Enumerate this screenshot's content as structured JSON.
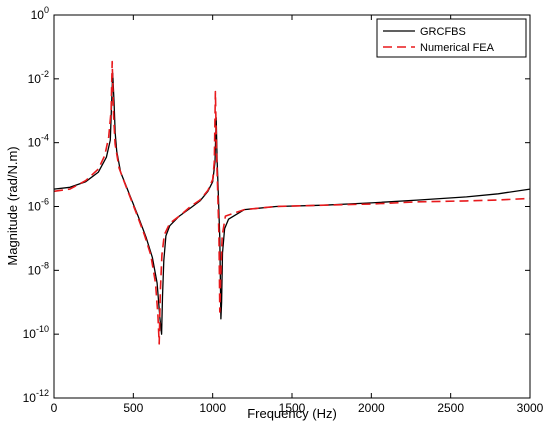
{
  "chart_data": {
    "type": "line",
    "title": "",
    "xlabel": "Frequency (Hz)",
    "ylabel": "Magnitude (rad/N.m)",
    "xlim": [
      0,
      3000
    ],
    "ylim_log10": [
      -12,
      0
    ],
    "yscale": "log",
    "grid": false,
    "legend_position": "top-right",
    "x_ticks": [
      "0",
      "500",
      "1000",
      "1500",
      "2000",
      "2500",
      "3000"
    ],
    "y_ticks": [
      {
        "base": "10",
        "exp": "0"
      },
      {
        "base": "10",
        "exp": "-2"
      },
      {
        "base": "10",
        "exp": "-4"
      },
      {
        "base": "10",
        "exp": "-6"
      },
      {
        "base": "10",
        "exp": "-8"
      },
      {
        "base": "10",
        "exp": "-10"
      },
      {
        "base": "10",
        "exp": "-12"
      }
    ],
    "series": [
      {
        "name": "GRCFBS",
        "color": "#000000",
        "dash": "solid",
        "x": [
          0,
          100,
          200,
          280,
          330,
          355,
          370,
          378,
          386,
          395,
          420,
          470,
          530,
          580,
          620,
          650,
          668,
          678,
          684,
          692,
          705,
          730,
          790,
          860,
          920,
          970,
          1000,
          1015,
          1022,
          1028,
          1034,
          1045,
          1052,
          1056,
          1062,
          1075,
          1100,
          1200,
          1400,
          1700,
          2000,
          2300,
          2600,
          2800,
          3000
        ],
        "y": [
          3.5e-06,
          4e-06,
          6e-06,
          1.2e-05,
          3.5e-05,
          0.00012,
          0.015,
          0.002,
          0.0002,
          5.5e-05,
          1.2e-05,
          2.8e-06,
          5e-07,
          1.1e-07,
          2.5e-08,
          4e-09,
          3e-10,
          1e-10,
          1.5e-09,
          2e-08,
          1.2e-07,
          2.5e-07,
          5e-07,
          9e-07,
          1.5e-06,
          3e-06,
          6e-06,
          2.5e-05,
          0.0006,
          3e-05,
          4e-06,
          1e-07,
          3e-10,
          1e-09,
          3.5e-08,
          2e-07,
          4e-07,
          8e-07,
          1e-06,
          1.1e-06,
          1.3e-06,
          1.6e-06,
          2e-06,
          2.5e-06,
          3.5e-06
        ]
      },
      {
        "name": "Numerical FEA",
        "color": "#e8191c",
        "dash": "dashed",
        "x": [
          0,
          100,
          200,
          280,
          320,
          345,
          360,
          367,
          375,
          385,
          410,
          460,
          520,
          570,
          610,
          640,
          655,
          663,
          670,
          680,
          695,
          730,
          790,
          860,
          920,
          970,
          1000,
          1010,
          1017,
          1025,
          1032,
          1040,
          1045,
          1050,
          1060,
          1080,
          1200,
          1400,
          1700,
          2000,
          2300,
          2600,
          2800,
          3000
        ],
        "y": [
          3e-06,
          3.5e-06,
          6.5e-06,
          1.5e-05,
          4e-05,
          0.00015,
          0.001,
          0.035,
          0.0008,
          9e-05,
          1.6e-05,
          3.5e-06,
          6e-07,
          1.3e-07,
          3e-08,
          4e-09,
          4e-10,
          5e-11,
          2e-09,
          3e-08,
          1.3e-07,
          3e-07,
          5e-07,
          1e-06,
          1.6e-06,
          3.2e-06,
          7e-06,
          2.5e-05,
          0.004,
          4e-05,
          3e-06,
          1e-07,
          5e-10,
          5e-09,
          1.2e-07,
          5e-07,
          8e-07,
          1e-06,
          1.1e-06,
          1.2e-06,
          1.4e-06,
          1.5e-06,
          1.6e-06,
          1.8e-06
        ]
      }
    ]
  }
}
